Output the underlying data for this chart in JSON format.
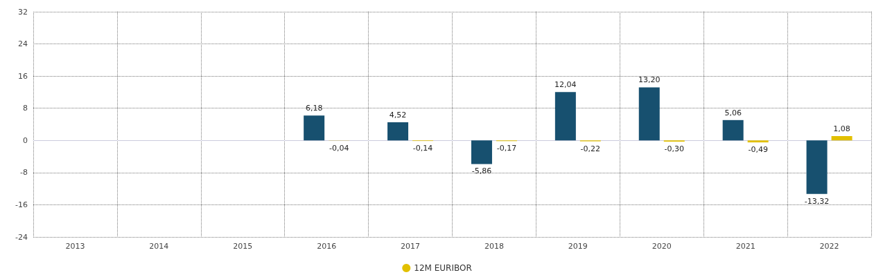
{
  "chart_data": {
    "type": "bar",
    "categories": [
      "2013",
      "2014",
      "2015",
      "2016",
      "2017",
      "2018",
      "2019",
      "2020",
      "2021",
      "2022"
    ],
    "series": [
      {
        "color": "#17506f",
        "values": [
          null,
          null,
          null,
          6.18,
          4.52,
          -5.86,
          12.04,
          13.2,
          5.06,
          -13.32
        ],
        "value_labels": [
          null,
          null,
          null,
          "6,18",
          "4,52",
          "-5,86",
          "12,04",
          "13,20",
          "5,06",
          "-13,32"
        ]
      },
      {
        "name": "12M EURIBOR",
        "color": "#e2c000",
        "values": [
          null,
          null,
          null,
          -0.04,
          -0.14,
          -0.17,
          -0.22,
          -0.3,
          -0.49,
          1.08
        ],
        "value_labels": [
          null,
          null,
          null,
          "-0,04",
          "-0,14",
          "-0,17",
          "-0,22",
          "-0,30",
          "-0,49",
          "1,08"
        ]
      }
    ],
    "ylim": [
      -24,
      32
    ],
    "yticks": [
      -24,
      -16,
      -8,
      0,
      8,
      16,
      24,
      32
    ],
    "grid": true,
    "legend": "bottom"
  }
}
